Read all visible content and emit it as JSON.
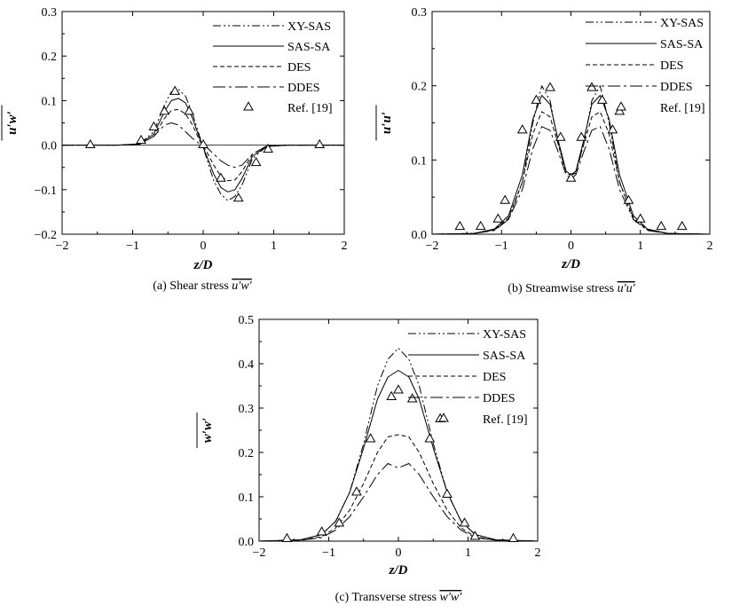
{
  "chart_data": [
    {
      "type": "line",
      "caption": "(a) Shear stress",
      "caption_symbol": "u′w′",
      "xlabel": "z/D",
      "ylabel": "u′w′",
      "xlim": [
        -2,
        2
      ],
      "ylim": [
        -0.2,
        0.3
      ],
      "xticks": [
        "−2",
        "−1",
        "0",
        "1",
        "2"
      ],
      "yticks": [
        "−0.2",
        "−0.1",
        "0.0",
        "0.1",
        "0.2",
        "0.3"
      ],
      "legend_position": "top-right",
      "series": [
        {
          "name": "XY-SAS",
          "style": "dashdot2",
          "x": [
            -2,
            -1.2,
            -0.9,
            -0.7,
            -0.55,
            -0.45,
            -0.35,
            -0.25,
            -0.15,
            -0.05,
            0.05,
            0.15,
            0.25,
            0.35,
            0.45,
            0.55,
            0.7,
            0.9,
            1.2,
            2
          ],
          "y": [
            0,
            0,
            0.003,
            0.03,
            0.09,
            0.12,
            0.125,
            0.11,
            0.07,
            0.02,
            -0.03,
            -0.08,
            -0.11,
            -0.125,
            -0.115,
            -0.09,
            -0.03,
            -0.003,
            0,
            0
          ]
        },
        {
          "name": "SAS-SA",
          "style": "solid",
          "x": [
            -2,
            -1.2,
            -0.9,
            -0.7,
            -0.55,
            -0.45,
            -0.35,
            -0.25,
            -0.15,
            -0.05,
            0.05,
            0.15,
            0.25,
            0.35,
            0.45,
            0.55,
            0.7,
            0.9,
            1.2,
            2
          ],
          "y": [
            0,
            0,
            0.003,
            0.025,
            0.075,
            0.1,
            0.105,
            0.095,
            0.06,
            0.015,
            -0.025,
            -0.065,
            -0.095,
            -0.105,
            -0.1,
            -0.075,
            -0.025,
            -0.003,
            0,
            0
          ]
        },
        {
          "name": "DES",
          "style": "dashed",
          "x": [
            -2,
            -1.2,
            -0.9,
            -0.7,
            -0.55,
            -0.45,
            -0.35,
            -0.25,
            -0.15,
            -0.05,
            0.05,
            0.15,
            0.25,
            0.35,
            0.45,
            0.55,
            0.7,
            0.9,
            1.2,
            2
          ],
          "y": [
            0,
            0,
            0.002,
            0.02,
            0.06,
            0.078,
            0.08,
            0.07,
            0.045,
            0.01,
            -0.015,
            -0.045,
            -0.07,
            -0.08,
            -0.078,
            -0.06,
            -0.02,
            -0.002,
            0,
            0
          ]
        },
        {
          "name": "DDES",
          "style": "longdash",
          "x": [
            -2,
            -1.2,
            -0.9,
            -0.7,
            -0.55,
            -0.45,
            -0.35,
            -0.25,
            -0.15,
            -0.05,
            0.05,
            0.15,
            0.25,
            0.35,
            0.45,
            0.55,
            0.7,
            0.9,
            1.2,
            2
          ],
          "y": [
            0,
            0,
            0.002,
            0.02,
            0.045,
            0.05,
            0.045,
            0.03,
            0.015,
            0.003,
            -0.005,
            -0.02,
            -0.035,
            -0.045,
            -0.05,
            -0.045,
            -0.02,
            -0.002,
            0,
            0
          ]
        },
        {
          "name": "Ref. [19]",
          "style": "marker",
          "x": [
            -1.6,
            -0.88,
            -0.7,
            -0.55,
            -0.4,
            -0.2,
            0.0,
            0.25,
            0.5,
            0.75,
            0.92,
            1.65
          ],
          "y": [
            0.0,
            0.01,
            0.04,
            0.075,
            0.12,
            0.075,
            0.0,
            -0.075,
            -0.12,
            -0.04,
            -0.01,
            0.0
          ]
        }
      ]
    },
    {
      "type": "line",
      "caption": "(b)  Streamwise stress",
      "caption_symbol": "u′u′",
      "xlabel": "z/D",
      "ylabel": "u′u′",
      "xlim": [
        -2,
        2
      ],
      "ylim": [
        0,
        0.3
      ],
      "xticks": [
        "−2",
        "−1",
        "0",
        "1",
        "2"
      ],
      "yticks": [
        "0.0",
        "0.1",
        "0.2",
        "0.3"
      ],
      "legend_position": "top-right",
      "series": [
        {
          "name": "XY-SAS",
          "style": "dashdot2",
          "x": [
            -2,
            -1.4,
            -1.1,
            -0.9,
            -0.7,
            -0.55,
            -0.42,
            -0.3,
            -0.18,
            -0.07,
            0.0,
            0.07,
            0.18,
            0.3,
            0.42,
            0.55,
            0.7,
            0.9,
            1.1,
            1.4,
            2
          ],
          "y": [
            0,
            0.001,
            0.006,
            0.02,
            0.07,
            0.15,
            0.2,
            0.18,
            0.12,
            0.082,
            0.08,
            0.082,
            0.12,
            0.18,
            0.2,
            0.15,
            0.07,
            0.02,
            0.006,
            0.001,
            0
          ]
        },
        {
          "name": "SAS-SA",
          "style": "solid",
          "x": [
            -2,
            -1.4,
            -1.1,
            -0.9,
            -0.7,
            -0.55,
            -0.42,
            -0.3,
            -0.18,
            -0.07,
            0.0,
            0.07,
            0.18,
            0.3,
            0.42,
            0.55,
            0.7,
            0.9,
            1.1,
            1.4,
            2
          ],
          "y": [
            0,
            0.001,
            0.007,
            0.025,
            0.08,
            0.155,
            0.187,
            0.175,
            0.125,
            0.085,
            0.08,
            0.085,
            0.125,
            0.175,
            0.187,
            0.155,
            0.08,
            0.025,
            0.007,
            0.001,
            0
          ]
        },
        {
          "name": "DES",
          "style": "dashed",
          "x": [
            -2,
            -1.4,
            -1.1,
            -0.9,
            -0.7,
            -0.55,
            -0.42,
            -0.3,
            -0.18,
            -0.07,
            0.0,
            0.07,
            0.18,
            0.3,
            0.42,
            0.55,
            0.7,
            0.9,
            1.1,
            1.4,
            2
          ],
          "y": [
            0,
            0.001,
            0.006,
            0.022,
            0.07,
            0.135,
            0.165,
            0.158,
            0.12,
            0.085,
            0.078,
            0.085,
            0.12,
            0.158,
            0.165,
            0.135,
            0.07,
            0.022,
            0.006,
            0.001,
            0
          ]
        },
        {
          "name": "DDES",
          "style": "longdash",
          "x": [
            -2,
            -1.4,
            -1.1,
            -0.9,
            -0.7,
            -0.55,
            -0.42,
            -0.3,
            -0.18,
            -0.07,
            0.0,
            0.07,
            0.18,
            0.3,
            0.42,
            0.55,
            0.7,
            0.9,
            1.1,
            1.4,
            2
          ],
          "y": [
            0,
            0.001,
            0.005,
            0.02,
            0.06,
            0.115,
            0.145,
            0.14,
            0.11,
            0.08,
            0.075,
            0.08,
            0.11,
            0.14,
            0.145,
            0.115,
            0.06,
            0.02,
            0.005,
            0.001,
            0
          ]
        },
        {
          "name": "Ref. [19]",
          "style": "marker",
          "x": [
            -1.6,
            -1.3,
            -1.05,
            -0.95,
            -0.7,
            -0.5,
            -0.3,
            -0.15,
            0.0,
            0.15,
            0.3,
            0.45,
            0.6,
            0.7,
            0.83,
            1.0,
            1.3,
            1.6
          ],
          "y": [
            0.01,
            0.01,
            0.02,
            0.045,
            0.14,
            0.18,
            0.197,
            0.13,
            0.075,
            0.13,
            0.197,
            0.18,
            0.14,
            0.165,
            0.045,
            0.02,
            0.01,
            0.01
          ]
        }
      ]
    },
    {
      "type": "line",
      "caption": "(c)  Transverse stress",
      "caption_symbol": "w′w′",
      "xlabel": "z/D",
      "ylabel": "w′w′",
      "xlim": [
        -2,
        2
      ],
      "ylim": [
        0,
        0.5
      ],
      "xticks": [
        "−2",
        "−1",
        "0",
        "1",
        "2"
      ],
      "yticks": [
        "0.0",
        "0.1",
        "0.2",
        "0.3",
        "0.4",
        "0.5"
      ],
      "legend_position": "top-right",
      "series": [
        {
          "name": "XY-SAS",
          "style": "dashdot2",
          "x": [
            -2,
            -1.4,
            -1.1,
            -0.9,
            -0.7,
            -0.5,
            -0.3,
            -0.15,
            0.0,
            0.15,
            0.3,
            0.5,
            0.7,
            0.9,
            1.1,
            1.4,
            2
          ],
          "y": [
            0,
            0.003,
            0.015,
            0.045,
            0.11,
            0.22,
            0.35,
            0.41,
            0.435,
            0.41,
            0.35,
            0.22,
            0.11,
            0.045,
            0.015,
            0.003,
            0
          ]
        },
        {
          "name": "SAS-SA",
          "style": "solid",
          "x": [
            -2,
            -1.4,
            -1.1,
            -0.9,
            -0.7,
            -0.5,
            -0.3,
            -0.15,
            0.0,
            0.15,
            0.3,
            0.5,
            0.7,
            0.9,
            1.1,
            1.4,
            2
          ],
          "y": [
            0,
            0.003,
            0.015,
            0.045,
            0.11,
            0.21,
            0.32,
            0.37,
            0.385,
            0.37,
            0.32,
            0.21,
            0.11,
            0.045,
            0.015,
            0.003,
            0
          ]
        },
        {
          "name": "DES",
          "style": "dashed",
          "x": [
            -2,
            -1.4,
            -1.1,
            -0.9,
            -0.7,
            -0.5,
            -0.3,
            -0.15,
            0.0,
            0.15,
            0.3,
            0.5,
            0.7,
            0.9,
            1.1,
            1.4,
            2
          ],
          "y": [
            0,
            0.002,
            0.01,
            0.03,
            0.07,
            0.13,
            0.2,
            0.235,
            0.24,
            0.235,
            0.2,
            0.13,
            0.07,
            0.03,
            0.01,
            0.002,
            0
          ]
        },
        {
          "name": "DDES",
          "style": "longdash",
          "x": [
            -2,
            -1.4,
            -1.1,
            -0.9,
            -0.7,
            -0.5,
            -0.3,
            -0.15,
            0.0,
            0.15,
            0.3,
            0.5,
            0.7,
            0.9,
            1.1,
            1.4,
            2
          ],
          "y": [
            0,
            0.002,
            0.008,
            0.025,
            0.055,
            0.1,
            0.15,
            0.175,
            0.165,
            0.175,
            0.15,
            0.1,
            0.055,
            0.025,
            0.008,
            0.002,
            0
          ]
        },
        {
          "name": "Ref. [19]",
          "style": "marker",
          "x": [
            -1.6,
            -1.1,
            -0.85,
            -0.6,
            -0.4,
            -0.1,
            0.0,
            0.2,
            0.45,
            0.6,
            0.7,
            0.95,
            1.1,
            1.65
          ],
          "y": [
            0.005,
            0.02,
            0.04,
            0.11,
            0.23,
            0.325,
            0.34,
            0.32,
            0.23,
            0.275,
            0.105,
            0.04,
            0.01,
            0.005
          ]
        }
      ]
    }
  ]
}
